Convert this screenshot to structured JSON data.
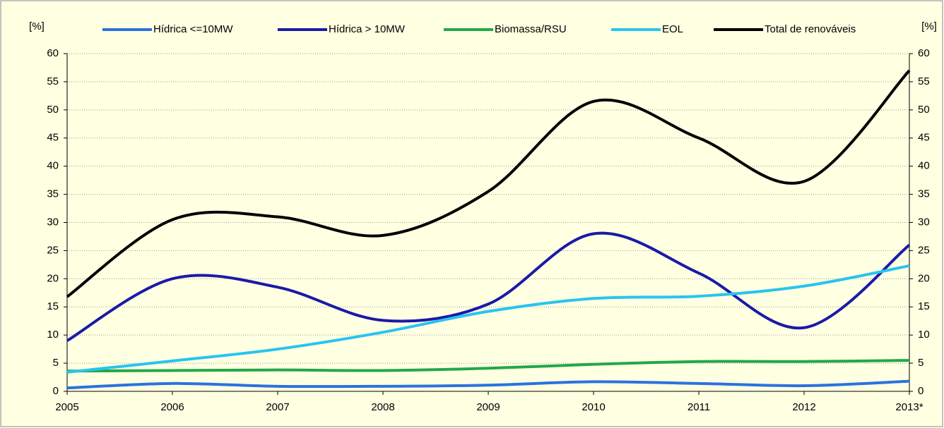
{
  "chart_data": {
    "type": "line",
    "y_label": "[%]",
    "y2_label": "[%]",
    "categories": [
      "2005",
      "2006",
      "2007",
      "2008",
      "2009",
      "2010",
      "2011",
      "2012",
      "2013*"
    ],
    "series": [
      {
        "name": "Hídrica <=10MW",
        "color": "#2a72e0",
        "values": [
          0.6,
          1.4,
          0.9,
          0.9,
          1.1,
          1.7,
          1.4,
          1.0,
          1.8
        ]
      },
      {
        "name": "Hídrica > 10MW",
        "color": "#1a1aa8",
        "values": [
          9,
          20,
          18.5,
          12.6,
          15.5,
          28,
          21,
          11.3,
          26
        ]
      },
      {
        "name": "Biomassa/RSU",
        "color": "#22a84a",
        "values": [
          3.6,
          3.7,
          3.8,
          3.7,
          4.1,
          4.8,
          5.3,
          5.3,
          5.5
        ]
      },
      {
        "name": "EOL",
        "color": "#29c4f0",
        "values": [
          3.4,
          5.4,
          7.5,
          10.5,
          14.2,
          16.5,
          16.9,
          18.7,
          22.3
        ]
      },
      {
        "name": "Total de renováveis",
        "color": "#000000",
        "values": [
          16.8,
          30.5,
          31,
          27.7,
          35.5,
          51.5,
          45,
          37.3,
          57
        ]
      }
    ],
    "ylim": [
      0,
      60
    ],
    "yticks": [
      0,
      5,
      10,
      15,
      20,
      25,
      30,
      35,
      40,
      45,
      50,
      55,
      60
    ],
    "y2lim": [
      0,
      60
    ],
    "y2ticks": [
      0,
      5,
      10,
      15,
      20,
      25,
      30,
      35,
      40,
      45,
      50,
      55,
      60
    ],
    "grid": true,
    "smooth": true
  }
}
